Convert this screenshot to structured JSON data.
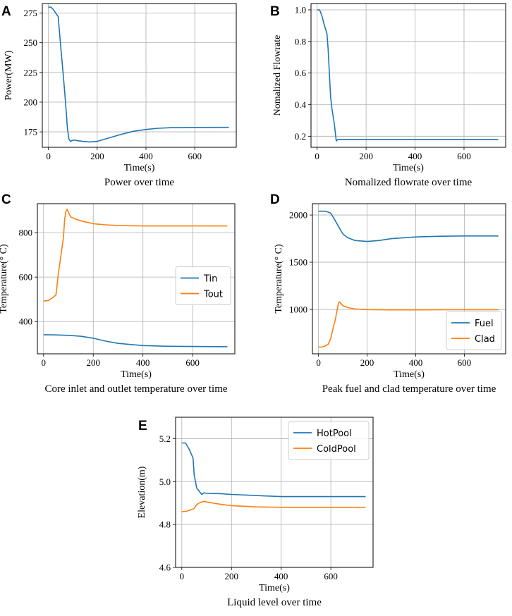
{
  "chart_data": [
    {
      "panel": "A",
      "type": "line",
      "title": "Power over time",
      "xlabel": "Time(s)",
      "ylabel": "Power(MW)",
      "xlim": [
        -25,
        770
      ],
      "ylim": [
        162,
        283
      ],
      "xticks": [
        0,
        200,
        400,
        600
      ],
      "yticks": [
        175,
        200,
        225,
        250,
        275
      ],
      "grid": true,
      "legend": null,
      "series": [
        {
          "name": "Power",
          "color": "#1f77b4",
          "x": [
            0,
            10,
            20,
            30,
            40,
            50,
            60,
            70,
            78,
            84,
            90,
            100,
            110,
            120,
            140,
            170,
            200,
            250,
            300,
            350,
            400,
            450,
            500,
            600,
            700,
            740
          ],
          "y": [
            280,
            280,
            278,
            275,
            272,
            248,
            225,
            200,
            178,
            169,
            167,
            168,
            168,
            167.5,
            167,
            166.5,
            167,
            170,
            173,
            175.5,
            177,
            178,
            178.5,
            178.7,
            178.8,
            178.8
          ]
        }
      ]
    },
    {
      "panel": "B",
      "type": "line",
      "title": "Nomalized flowrate over time",
      "xlabel": "Time(s)",
      "ylabel": "Nomalized Flowrate",
      "xlim": [
        -25,
        770
      ],
      "ylim": [
        0.13,
        1.04
      ],
      "xticks": [
        0,
        200,
        400,
        600
      ],
      "yticks": [
        0.2,
        0.4,
        0.6,
        0.8,
        1.0
      ],
      "grid": true,
      "legend": null,
      "series": [
        {
          "name": "Flowrate",
          "color": "#1f77b4",
          "x": [
            0,
            10,
            20,
            30,
            40,
            45,
            50,
            55,
            60,
            70,
            78,
            85,
            95,
            120,
            200,
            400,
            600,
            740
          ],
          "y": [
            1.0,
            1.0,
            0.96,
            0.9,
            0.85,
            0.75,
            0.6,
            0.45,
            0.38,
            0.28,
            0.17,
            0.18,
            0.18,
            0.18,
            0.18,
            0.18,
            0.18,
            0.18
          ]
        }
      ]
    },
    {
      "panel": "C",
      "type": "line",
      "title": "Core inlet and outlet temperature over time",
      "xlabel": "Time(s)",
      "ylabel": "Temperature(° C)",
      "xlim": [
        -25,
        770
      ],
      "ylim": [
        255,
        930
      ],
      "xticks": [
        0,
        200,
        400,
        600
      ],
      "yticks": [
        400,
        600,
        800
      ],
      "grid": true,
      "legend": "center-right",
      "series": [
        {
          "name": "Tin",
          "color": "#1f77b4",
          "x": [
            0,
            50,
            100,
            150,
            200,
            250,
            300,
            400,
            500,
            600,
            740
          ],
          "y": [
            341,
            340,
            338,
            334,
            325,
            312,
            302,
            292,
            289,
            288,
            287
          ]
        },
        {
          "name": "Tout",
          "color": "#ff7f0e",
          "x": [
            0,
            20,
            40,
            50,
            60,
            70,
            80,
            85,
            90,
            95,
            100,
            110,
            130,
            160,
            200,
            250,
            300,
            400,
            600,
            740
          ],
          "y": [
            492,
            495,
            510,
            520,
            620,
            700,
            780,
            860,
            895,
            905,
            890,
            870,
            860,
            850,
            840,
            835,
            832,
            830,
            830,
            830
          ]
        }
      ]
    },
    {
      "panel": "D",
      "type": "line",
      "title": "Peak fuel and clad temperature over time",
      "xlabel": "Time(s)",
      "ylabel": "Temperature(° C)",
      "xlim": [
        -25,
        770
      ],
      "ylim": [
        530,
        2120
      ],
      "xticks": [
        0,
        200,
        400,
        600
      ],
      "yticks": [
        1000,
        1500,
        2000
      ],
      "grid": true,
      "legend": "lower-right",
      "series": [
        {
          "name": "Fuel",
          "color": "#1f77b4",
          "x": [
            0,
            30,
            50,
            60,
            80,
            100,
            120,
            150,
            200,
            250,
            300,
            400,
            500,
            600,
            740
          ],
          "y": [
            2040,
            2040,
            2020,
            1980,
            1890,
            1800,
            1760,
            1730,
            1720,
            1730,
            1750,
            1768,
            1775,
            1778,
            1778
          ]
        },
        {
          "name": "Clad",
          "color": "#ff7f0e",
          "x": [
            0,
            20,
            40,
            50,
            60,
            70,
            80,
            85,
            90,
            100,
            120,
            150,
            200,
            300,
            400,
            600,
            740
          ],
          "y": [
            600,
            605,
            630,
            690,
            800,
            900,
            1040,
            1080,
            1070,
            1040,
            1020,
            1005,
            998,
            995,
            995,
            997,
            997
          ]
        }
      ]
    },
    {
      "panel": "E",
      "type": "line",
      "title": "Liquid level over time",
      "xlabel": "Time(s)",
      "ylabel": "Elevation(m)",
      "xlim": [
        -25,
        770
      ],
      "ylim": [
        4.6,
        5.3
      ],
      "xticks": [
        0,
        200,
        400,
        600
      ],
      "yticks": [
        4.6,
        4.8,
        5.0,
        5.2
      ],
      "grid": true,
      "legend": "top-right",
      "series": [
        {
          "name": "HotPool",
          "color": "#1f77b4",
          "x": [
            0,
            15,
            30,
            45,
            50,
            55,
            60,
            70,
            80,
            90,
            100,
            150,
            200,
            300,
            400,
            500,
            600,
            740
          ],
          "y": [
            5.18,
            5.18,
            5.15,
            5.11,
            5.03,
            5.0,
            4.97,
            4.955,
            4.94,
            4.948,
            4.945,
            4.944,
            4.94,
            4.935,
            4.93,
            4.93,
            4.93,
            4.93
          ]
        },
        {
          "name": "ColdPool",
          "color": "#ff7f0e",
          "x": [
            0,
            20,
            40,
            50,
            60,
            70,
            80,
            90,
            100,
            150,
            200,
            300,
            400,
            600,
            740
          ],
          "y": [
            4.86,
            4.862,
            4.87,
            4.875,
            4.892,
            4.9,
            4.905,
            4.908,
            4.905,
            4.895,
            4.888,
            4.882,
            4.88,
            4.88,
            4.88
          ]
        }
      ]
    }
  ]
}
